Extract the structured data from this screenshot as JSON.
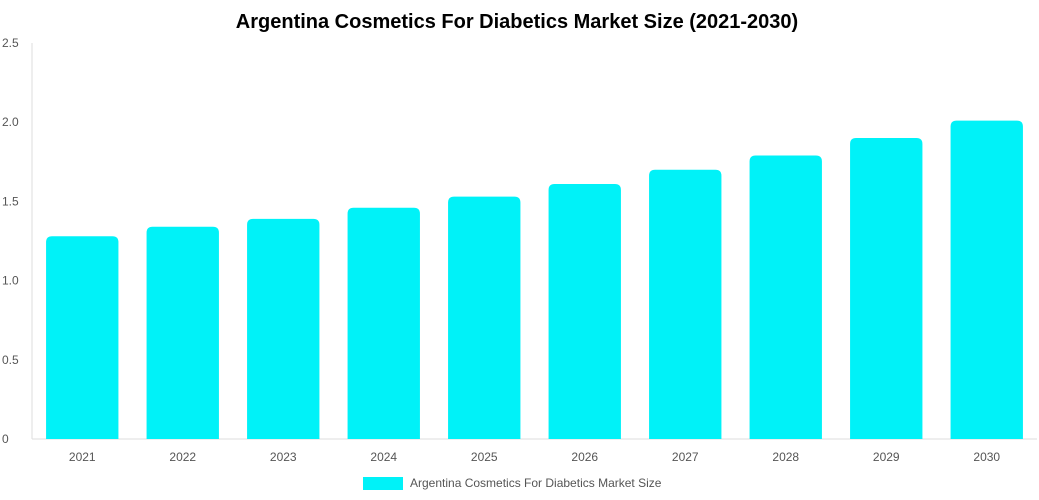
{
  "chart_data": {
    "type": "bar",
    "title": "Argentina Cosmetics For Diabetics Market Size (2021-2030)",
    "xlabel": "",
    "ylabel": "",
    "categories": [
      "2021",
      "2022",
      "2023",
      "2024",
      "2025",
      "2026",
      "2027",
      "2028",
      "2029",
      "2030"
    ],
    "series": [
      {
        "name": "Argentina Cosmetics For Diabetics Market Size",
        "color": "#00f2f8",
        "values": [
          1.28,
          1.34,
          1.39,
          1.46,
          1.53,
          1.61,
          1.7,
          1.79,
          1.9,
          2.01
        ]
      }
    ],
    "ylim": [
      0,
      2.5
    ],
    "yticks": [
      {
        "value": 0,
        "label": "0"
      },
      {
        "value": 0.5,
        "label": "0.5"
      },
      {
        "value": 1.0,
        "label": "1.0"
      },
      {
        "value": 1.5,
        "label": "1.5"
      },
      {
        "value": 2.0,
        "label": "2.0"
      },
      {
        "value": 2.5,
        "label": "2.5"
      }
    ],
    "grid": false,
    "legend_position": "bottom-center"
  }
}
